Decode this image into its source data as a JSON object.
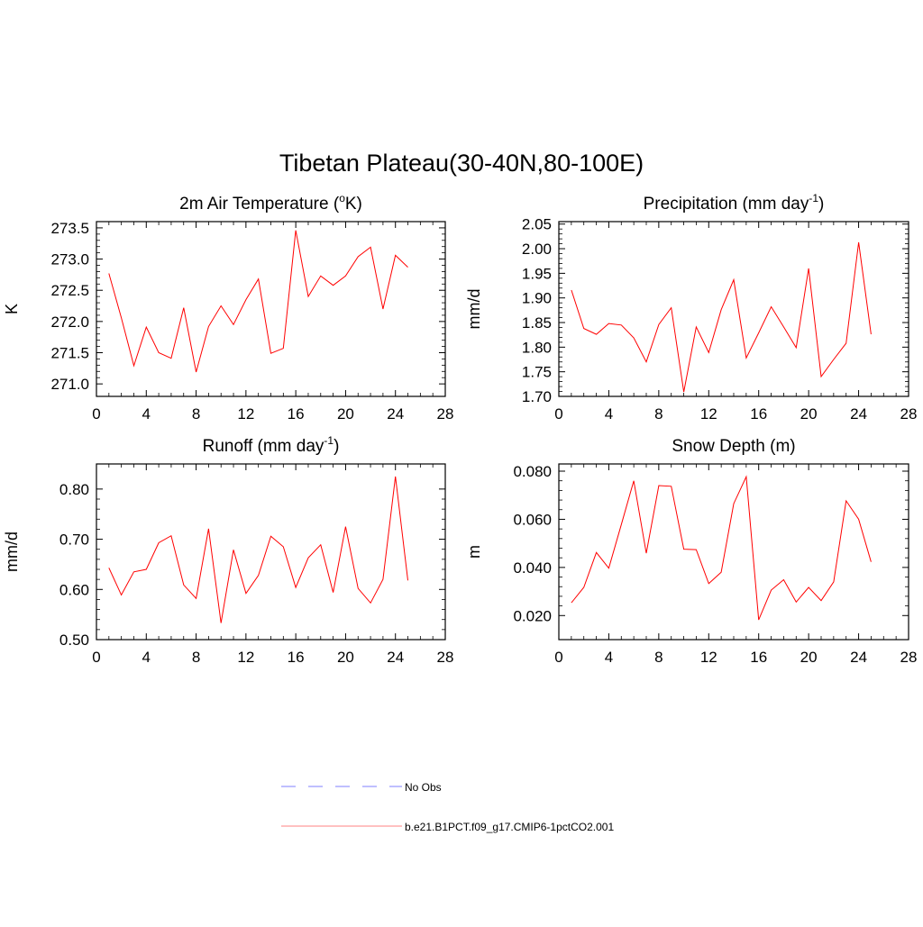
{
  "title": "Tibetan Plateau(30-40N,80-100E)",
  "colors": {
    "model": "#ff0000",
    "obs": "#9999ff",
    "axis": "#000000"
  },
  "chart_data": [
    {
      "type": "line",
      "title_main": "2m Air Temperature (",
      "title_sup": "o",
      "title_tail": "K)",
      "ylabel": "K",
      "xlim": [
        0,
        28
      ],
      "ylim": [
        270.8,
        273.6
      ],
      "xticks": [
        0,
        4,
        8,
        12,
        16,
        20,
        24,
        28
      ],
      "yticks": [
        271.0,
        271.5,
        272.0,
        272.5,
        273.0,
        273.5
      ],
      "yticklabels": [
        "271.0",
        "271.5",
        "272.0",
        "272.5",
        "273.0",
        "273.5"
      ],
      "x": [
        1,
        2,
        3,
        4,
        5,
        6,
        7,
        8,
        9,
        10,
        11,
        12,
        13,
        14,
        15,
        16,
        17,
        18,
        19,
        20,
        21,
        22,
        23,
        24,
        25
      ],
      "values": [
        272.77,
        272.06,
        271.29,
        271.91,
        271.5,
        271.41,
        272.22,
        271.19,
        271.92,
        272.25,
        271.95,
        272.35,
        272.68,
        271.49,
        271.57,
        273.46,
        272.4,
        272.73,
        272.58,
        272.73,
        273.04,
        273.19,
        272.2,
        273.06,
        272.87
      ]
    },
    {
      "type": "line",
      "title_main": "Precipitation (mm day",
      "title_sup": "-1",
      "title_tail": ")",
      "ylabel": "mm/d",
      "xlim": [
        0,
        28
      ],
      "ylim": [
        1.7,
        2.055
      ],
      "xticks": [
        0,
        4,
        8,
        12,
        16,
        20,
        24,
        28
      ],
      "yticks": [
        1.7,
        1.75,
        1.8,
        1.85,
        1.9,
        1.95,
        2.0,
        2.05
      ],
      "yticklabels": [
        "1.70",
        "1.75",
        "1.80",
        "1.85",
        "1.90",
        "1.95",
        "2.00",
        "2.05"
      ],
      "x": [
        1,
        2,
        3,
        4,
        5,
        6,
        7,
        8,
        9,
        10,
        11,
        12,
        13,
        14,
        15,
        16,
        17,
        18,
        19,
        20,
        21,
        22,
        23,
        24,
        25
      ],
      "values": [
        1.916,
        1.838,
        1.826,
        1.848,
        1.845,
        1.819,
        1.77,
        1.846,
        1.88,
        1.709,
        1.841,
        1.789,
        1.876,
        1.937,
        1.778,
        1.829,
        1.882,
        1.841,
        1.799,
        1.96,
        1.74,
        1.775,
        1.808,
        2.013,
        1.826
      ]
    },
    {
      "type": "line",
      "title_main": "Runoff (mm day",
      "title_sup": "-1",
      "title_tail": ")",
      "ylabel": "mm/d",
      "xlim": [
        0,
        28
      ],
      "ylim": [
        0.5,
        0.85
      ],
      "xticks": [
        0,
        4,
        8,
        12,
        16,
        20,
        24,
        28
      ],
      "yticks": [
        0.5,
        0.6,
        0.7,
        0.8
      ],
      "yticklabels": [
        "0.50",
        "0.60",
        "0.70",
        "0.80"
      ],
      "x": [
        1,
        2,
        3,
        4,
        5,
        6,
        7,
        8,
        9,
        10,
        11,
        12,
        13,
        14,
        15,
        16,
        17,
        18,
        19,
        20,
        21,
        22,
        23,
        24,
        25
      ],
      "values": [
        0.643,
        0.589,
        0.635,
        0.64,
        0.693,
        0.707,
        0.609,
        0.582,
        0.721,
        0.533,
        0.679,
        0.592,
        0.628,
        0.706,
        0.685,
        0.604,
        0.663,
        0.689,
        0.594,
        0.725,
        0.602,
        0.573,
        0.62,
        0.825,
        0.618
      ]
    },
    {
      "type": "line",
      "title_main": "Snow Depth (m)",
      "title_sup": "",
      "title_tail": "",
      "ylabel": "m",
      "xlim": [
        0,
        28
      ],
      "ylim": [
        0.01,
        0.083
      ],
      "xticks": [
        0,
        4,
        8,
        12,
        16,
        20,
        24,
        28
      ],
      "yticks": [
        0.02,
        0.04,
        0.06,
        0.08
      ],
      "yticklabels": [
        "0.020",
        "0.040",
        "0.060",
        "0.080"
      ],
      "x": [
        1,
        2,
        3,
        4,
        5,
        6,
        7,
        8,
        9,
        10,
        11,
        12,
        13,
        14,
        15,
        16,
        17,
        18,
        19,
        20,
        21,
        22,
        23,
        24,
        25
      ],
      "values": [
        0.0253,
        0.0317,
        0.0462,
        0.0397,
        0.0578,
        0.076,
        0.0459,
        0.074,
        0.0737,
        0.0476,
        0.0474,
        0.0333,
        0.038,
        0.0665,
        0.0777,
        0.0182,
        0.0306,
        0.0349,
        0.0256,
        0.0317,
        0.0262,
        0.034,
        0.0677,
        0.06,
        0.0423
      ]
    }
  ],
  "legend": {
    "items": [
      {
        "label": "No Obs",
        "style": "dashed"
      },
      {
        "label": "b.e21.B1PCT.f09_g17.CMIP6-1pctCO2.001",
        "style": "solid"
      }
    ]
  }
}
